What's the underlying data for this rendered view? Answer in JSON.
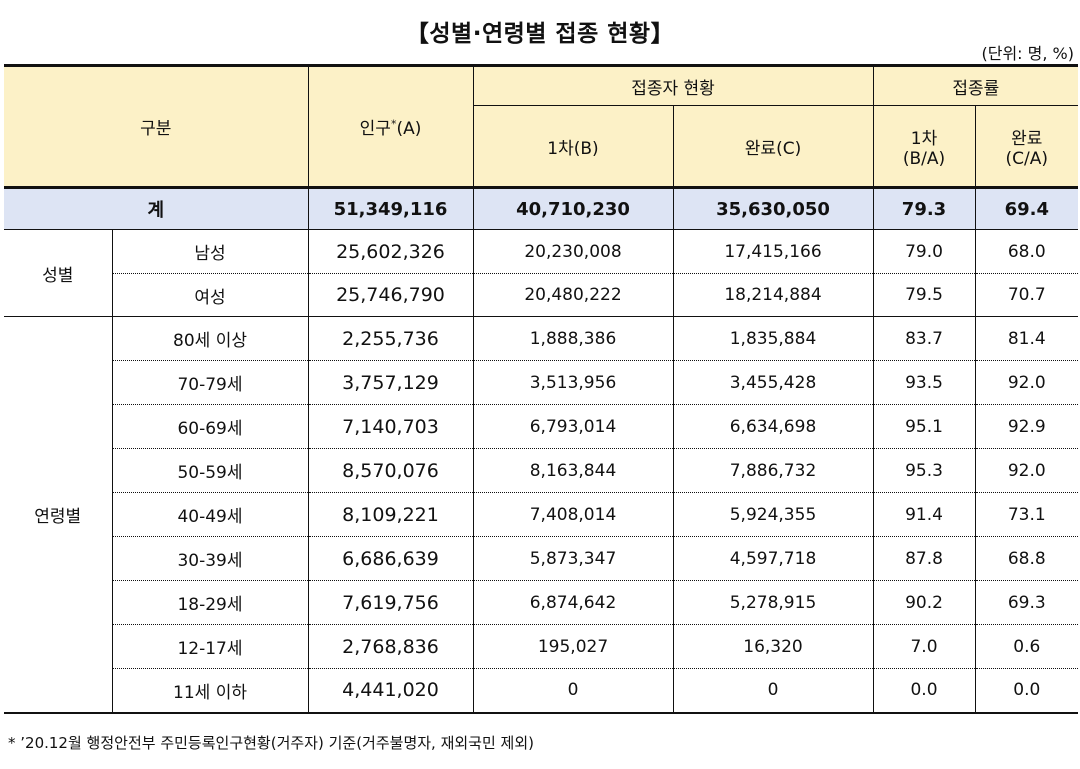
{
  "title": "【성별·연령별 접종 현황】",
  "unit": "(단위: 명, %)",
  "header": {
    "category": "구분",
    "population": "인구",
    "population_mark": "*",
    "population_suffix": "(A)",
    "vaccinated_group": "접종자 현황",
    "first_dose": "1차(B)",
    "completed": "완료(C)",
    "rate_group": "접종률",
    "rate_first_line1": "1차",
    "rate_first_line2": "(B/A)",
    "rate_complete_line1": "완료",
    "rate_complete_line2": "(C/A)"
  },
  "total": {
    "label": "계",
    "population": "51,349,116",
    "first": "40,710,230",
    "completed": "35,630,050",
    "rate_first": "79.3",
    "rate_completed": "69.4"
  },
  "gender": {
    "label": "성별",
    "rows": [
      {
        "label": "남성",
        "population": "25,602,326",
        "first": "20,230,008",
        "completed": "17,415,166",
        "rate_first": "79.0",
        "rate_completed": "68.0"
      },
      {
        "label": "여성",
        "population": "25,746,790",
        "first": "20,480,222",
        "completed": "18,214,884",
        "rate_first": "79.5",
        "rate_completed": "70.7"
      }
    ]
  },
  "age": {
    "label": "연령별",
    "rows": [
      {
        "label": "80세 이상",
        "population": "2,255,736",
        "first": "1,888,386",
        "completed": "1,835,884",
        "rate_first": "83.7",
        "rate_completed": "81.4"
      },
      {
        "label": "70-79세",
        "population": "3,757,129",
        "first": "3,513,956",
        "completed": "3,455,428",
        "rate_first": "93.5",
        "rate_completed": "92.0"
      },
      {
        "label": "60-69세",
        "population": "7,140,703",
        "first": "6,793,014",
        "completed": "6,634,698",
        "rate_first": "95.1",
        "rate_completed": "92.9"
      },
      {
        "label": "50-59세",
        "population": "8,570,076",
        "first": "8,163,844",
        "completed": "7,886,732",
        "rate_first": "95.3",
        "rate_completed": "92.0"
      },
      {
        "label": "40-49세",
        "population": "8,109,221",
        "first": "7,408,014",
        "completed": "5,924,355",
        "rate_first": "91.4",
        "rate_completed": "73.1"
      },
      {
        "label": "30-39세",
        "population": "6,686,639",
        "first": "5,873,347",
        "completed": "4,597,718",
        "rate_first": "87.8",
        "rate_completed": "68.8"
      },
      {
        "label": "18-29세",
        "population": "7,619,756",
        "first": "6,874,642",
        "completed": "5,278,915",
        "rate_first": "90.2",
        "rate_completed": "69.3"
      },
      {
        "label": "12-17세",
        "population": "2,768,836",
        "first": "195,027",
        "completed": "16,320",
        "rate_first": "7.0",
        "rate_completed": "0.6"
      },
      {
        "label": "11세 이하",
        "population": "4,441,020",
        "first": "0",
        "completed": "0",
        "rate_first": "0.0",
        "rate_completed": "0.0"
      }
    ]
  },
  "footnote": "* ’20.12월 행정안전부 주민등록인구현황(거주자) 기준(거주불명자, 재외국민 제외)"
}
